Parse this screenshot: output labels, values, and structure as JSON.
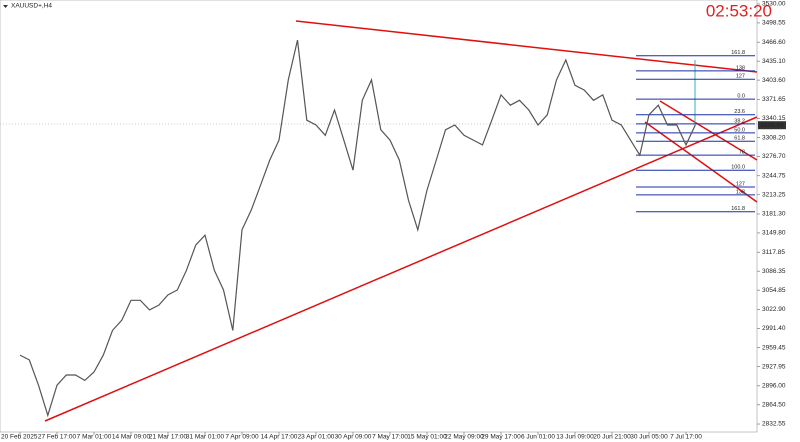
{
  "chart_data": {
    "type": "line",
    "title": "XAUUSD+,H4",
    "timer": "02:53:20",
    "last_price": 3328.69,
    "categories": [
      "20 Feb 2025",
      null,
      null,
      null,
      "27 Feb 17:00",
      null,
      null,
      null,
      "7 Mar 01:00",
      null,
      null,
      null,
      "14 Mar 09:00",
      null,
      null,
      null,
      "21 Mar 17:00",
      null,
      null,
      null,
      "31 Mar 01:00",
      null,
      null,
      null,
      "7 Apr 09:00",
      null,
      null,
      null,
      "14 Apr 17:00",
      null,
      null,
      null,
      "23 Apr 01:00",
      null,
      null,
      null,
      "30 Apr 09:00",
      null,
      null,
      null,
      "7 May 17:00",
      null,
      null,
      null,
      "15 May 01:00",
      null,
      null,
      null,
      "22 May 09:00",
      null,
      null,
      null,
      "29 May 17:00",
      null,
      null,
      null,
      "6 Jun 01:00",
      null,
      null,
      null,
      "13 Jun 09:00",
      null,
      null,
      null,
      "20 Jun 21:00",
      null,
      null,
      null,
      "30 Jun 05:00",
      null,
      null,
      null,
      "7 Jul 17:00",
      null,
      null,
      null,
      null,
      null,
      null,
      null
    ],
    "series": [
      {
        "color": "#555555",
        "values": [
          2947,
          2939,
          2897,
          2847,
          2897,
          2914,
          2914,
          2905,
          2919,
          2947,
          2988,
          3005,
          3038,
          3038,
          3022,
          3030,
          3047,
          3055,
          3088,
          3130,
          3146,
          3088,
          3055,
          2988,
          3155,
          3188,
          3229,
          3271,
          3304,
          3404,
          3470,
          3337,
          3329,
          3312,
          3354,
          3304,
          3254,
          3370,
          3404,
          3321,
          3304,
          3271,
          3204,
          3155,
          3221,
          3271,
          3321,
          3329,
          3312,
          3304,
          3296,
          3337,
          3379,
          3362,
          3370,
          3354,
          3329,
          3346,
          3404,
          3437,
          3395,
          3387,
          3370,
          3379,
          3337,
          3329,
          3304,
          3279,
          3346,
          3362,
          3329,
          3329,
          3296,
          3329,
          null,
          null,
          null,
          null,
          null,
          null
        ]
      }
    ],
    "ylim": [
      2819.3,
      3536.6
    ],
    "yticks": [
      {
        "value": 3530,
        "label": "3530.00"
      },
      3498.55,
      {
        "value": 3466.6,
        "label": "3466.60"
      },
      {
        "value": 3435.1,
        "label": "3435.10"
      },
      {
        "value": 3403.6,
        "label": "3403.60"
      },
      3371.65,
      3340.15,
      {
        "value": 3308.2,
        "label": "3308.20"
      },
      {
        "value": 3276.7,
        "label": "3276.70"
      },
      3244.75,
      3213.25,
      {
        "value": 3181.3,
        "label": "3181.30"
      },
      {
        "value": 3149.8,
        "label": "3149.80"
      },
      3117.85,
      3086.35,
      3054.85,
      {
        "value": 3022.9,
        "label": "3022.90"
      },
      {
        "value": 2991.4,
        "label": "2991.40"
      },
      2959.45,
      2927.95,
      {
        "value": 2896,
        "label": "2896.00"
      },
      {
        "value": 2864.5,
        "label": "2864.50"
      },
      2832.55
    ],
    "fib_levels": [
      {
        "label": "161.8",
        "value": 3444
      },
      {
        "label": "138",
        "value": 3419
      },
      {
        "label": "127",
        "value": 3405
      },
      {
        "label": "0.0",
        "value": 3372
      },
      {
        "label": "23.6",
        "value": 3346
      },
      {
        "label": "38.2",
        "value": 3331
      },
      {
        "label": "50.0",
        "value": 3316
      },
      {
        "label": "61.8",
        "value": 3302
      },
      {
        "label": "78",
        "value": 3279
      },
      {
        "label": "100.0",
        "value": 3254
      },
      {
        "label": "127",
        "value": 3226
      },
      {
        "label": "138",
        "value": 3213
      },
      {
        "label": "161.8",
        "value": 3185
      }
    ],
    "grid": false
  }
}
